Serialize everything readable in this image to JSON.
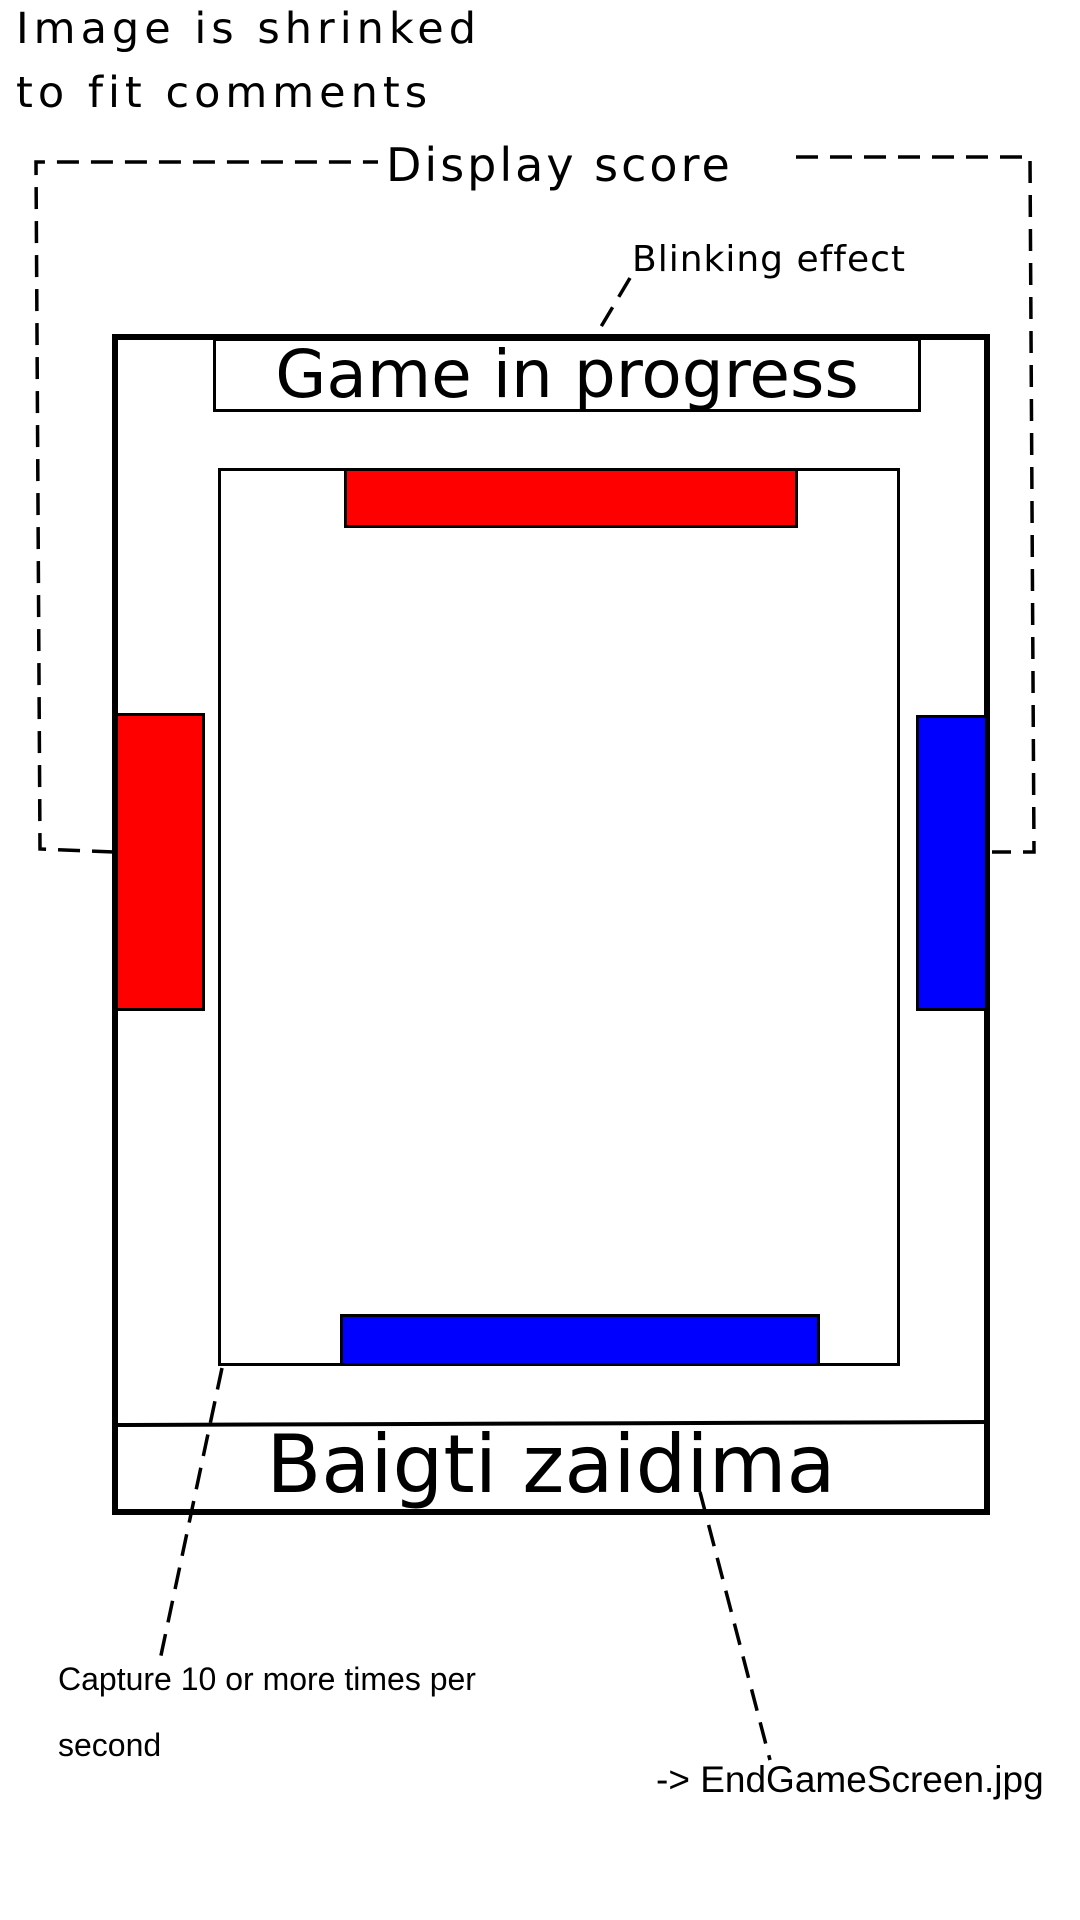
{
  "annotations": {
    "shrink_note_line1": "Image is shrinked",
    "shrink_note_line2": "to fit comments",
    "display_score": "Display score",
    "blinking_effect": "Blinking effect",
    "capture_note": "Capture 10 or more times per second",
    "end_game_target": "-> EndGameScreen.jpg"
  },
  "screen": {
    "title": "Game in progress",
    "end_game_button": "Baigti zaidima"
  },
  "colors": {
    "player_red": "#ff0000",
    "player_blue": "#0000ff",
    "outline": "#000000",
    "background": "#ffffff"
  }
}
